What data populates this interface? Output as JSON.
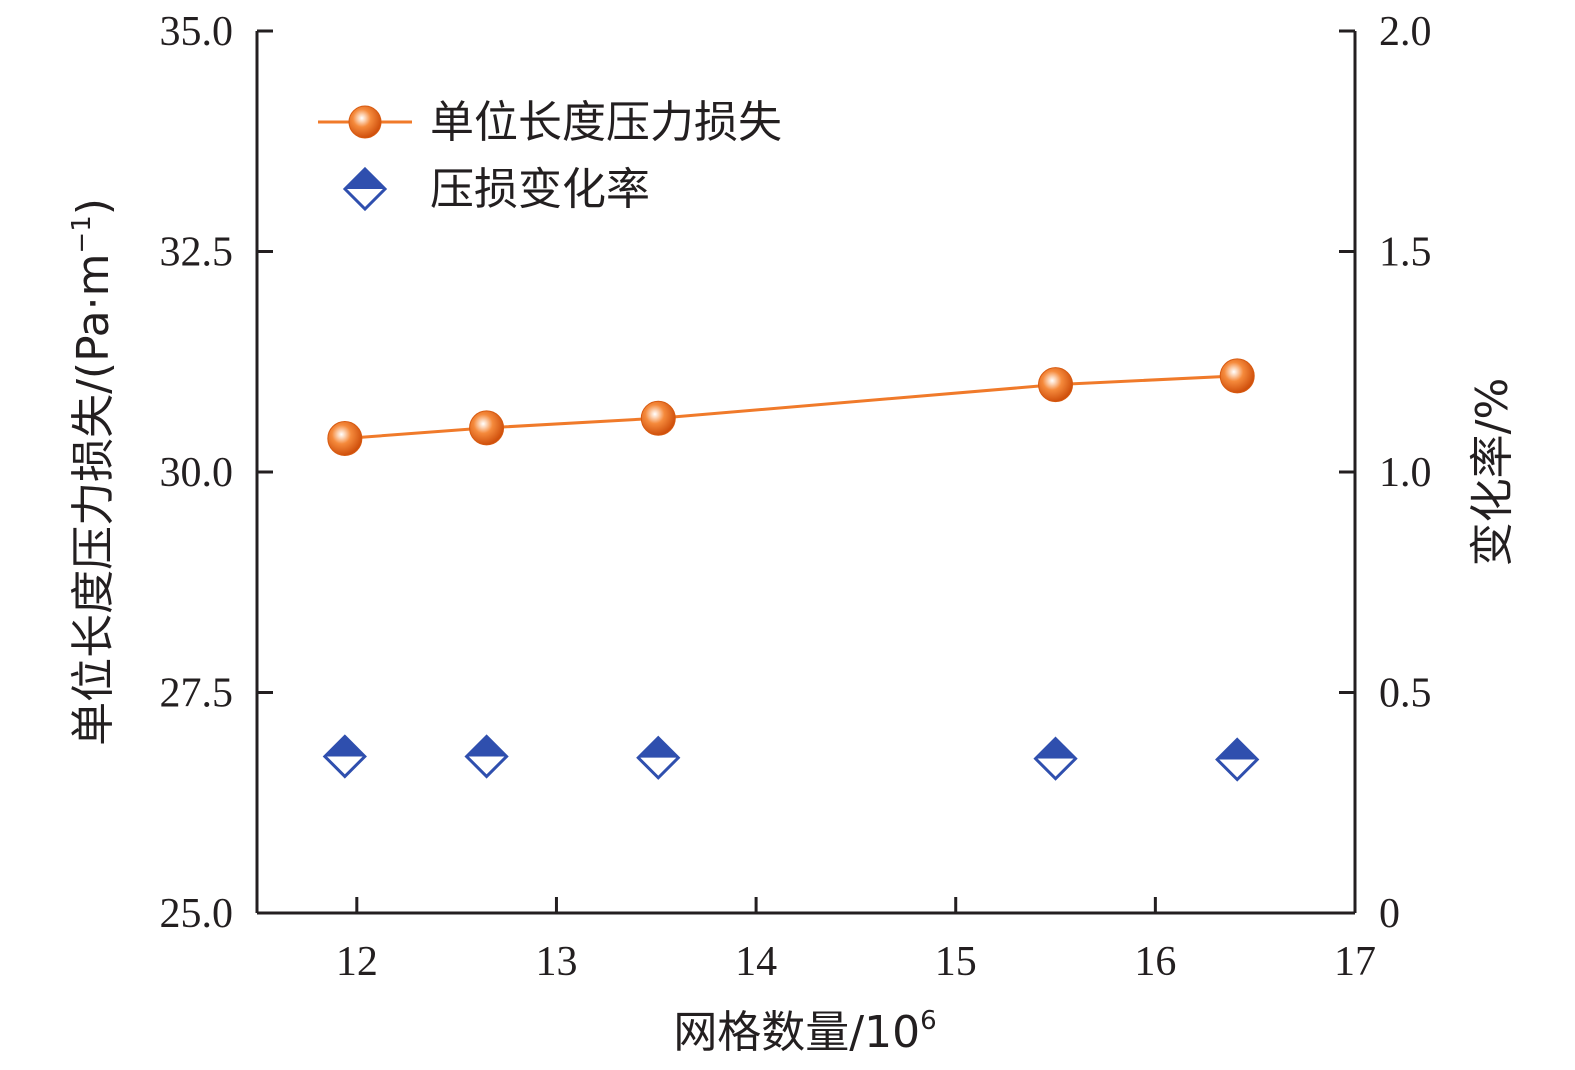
{
  "chart_data": {
    "type": "line",
    "xlabel": "网格数量/10",
    "xlabel_sup": "6",
    "ylabel_left": "单位长度压力损失/(Pa·m",
    "ylabel_left_sup": "−1",
    "ylabel_left_close": ")",
    "ylabel_right": "变化率/%",
    "xlim": [
      11.5,
      17
    ],
    "ylim_left": [
      25.0,
      35.0
    ],
    "ylim_right": [
      0,
      2.0
    ],
    "x_ticks": [
      "12",
      "13",
      "14",
      "15",
      "16",
      "17"
    ],
    "y_left_ticks": [
      "25.0",
      "27.5",
      "30.0",
      "32.5",
      "35.0"
    ],
    "y_right_ticks": [
      "0",
      "0.5",
      "1.0",
      "1.5",
      "2.0"
    ],
    "x": [
      11.94,
      12.65,
      13.51,
      15.5,
      16.41
    ],
    "series": [
      {
        "name": "单位长度压力损失",
        "axis": "left",
        "marker": "circle",
        "color": "#f07a2a",
        "values": [
          30.38,
          30.5,
          30.61,
          30.99,
          31.09
        ]
      },
      {
        "name": "压损变化率",
        "axis": "right",
        "marker": "diamond",
        "color": "#2f4fae",
        "values": [
          0.355,
          0.355,
          0.352,
          0.35,
          0.348
        ]
      }
    ],
    "legend_position": "top-left",
    "grid": false
  }
}
